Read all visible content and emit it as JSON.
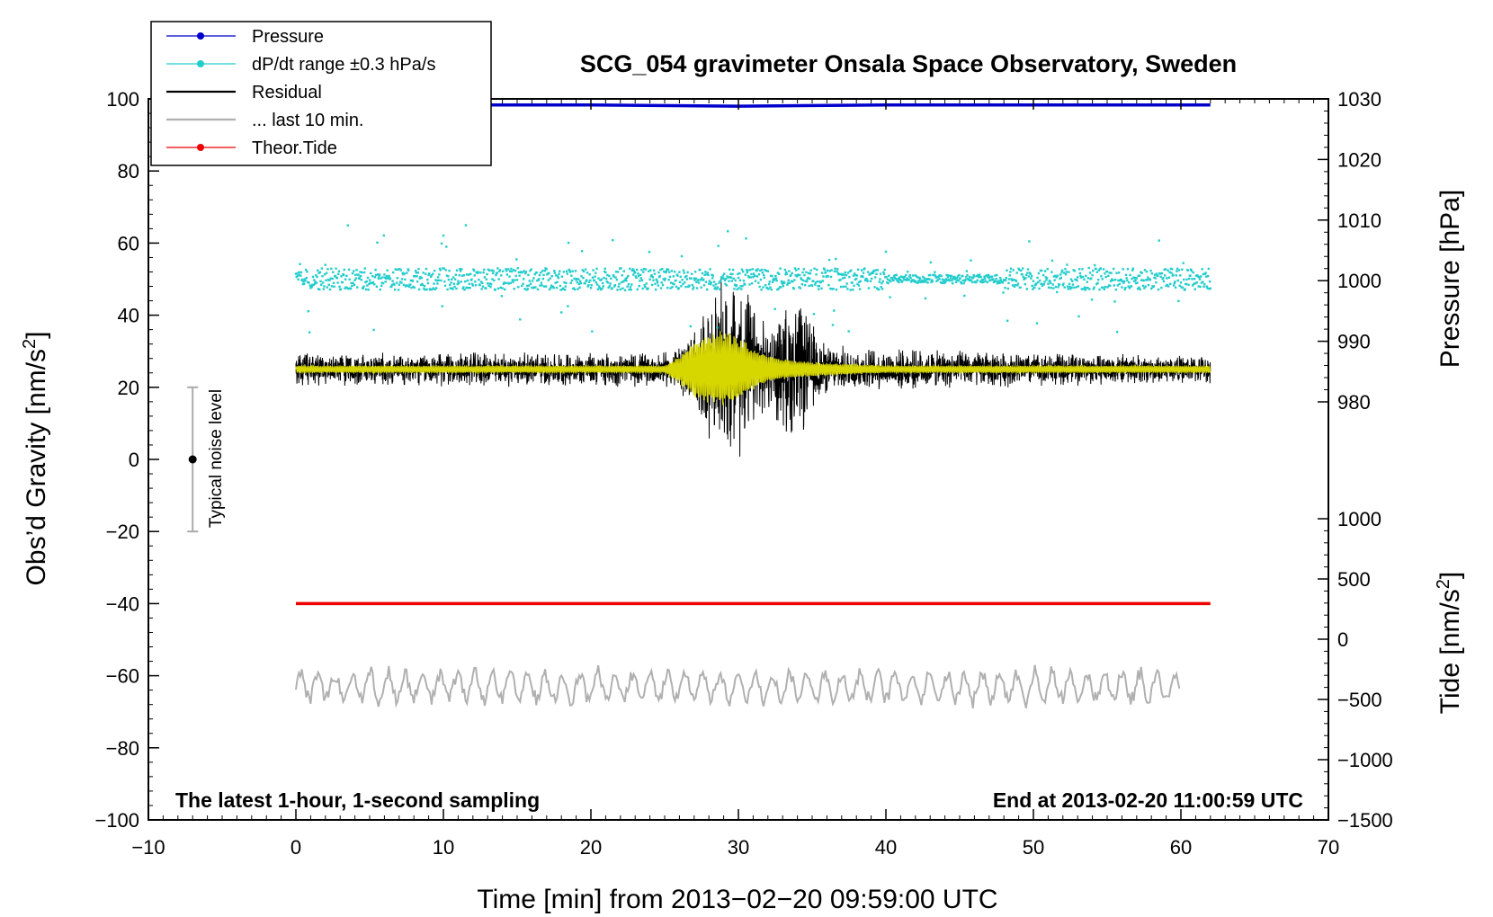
{
  "chart_data": {
    "type": "line",
    "title": "SCG_054 gravimeter Onsala Space Observatory, Sweden",
    "xlabel": "Time [min] from 2013−02−20 09:59:00 UTC",
    "ylabel_left_main": "Obs’d Gravity [nm/s",
    "ylabel_left_sup": "2",
    "ylabel_left_end": "]",
    "ylabel_right_pressure": "Pressure [hPa]",
    "ylabel_right_tide_main": "Tide [nm/s",
    "ylabel_right_tide_sup": "2",
    "ylabel_right_tide_end": "]",
    "xlim": [
      -10,
      70
    ],
    "ylim_left": [
      -100,
      100
    ],
    "ylim_pressure": [
      980,
      1030
    ],
    "ylim_tide": [
      -1500,
      1000
    ],
    "x_ticks": [
      "−10",
      "0",
      "10",
      "20",
      "30",
      "40",
      "50",
      "60",
      "70"
    ],
    "x_tick_values": [
      -10,
      0,
      10,
      20,
      30,
      40,
      50,
      60,
      70
    ],
    "left_ticks": [
      "100",
      "80",
      "60",
      "40",
      "20",
      "0",
      "−20",
      "−40",
      "−60",
      "−80",
      "−100"
    ],
    "left_tick_values": [
      100,
      80,
      60,
      40,
      20,
      0,
      -20,
      -40,
      -60,
      -80,
      -100
    ],
    "pressure_ticks": [
      "1030",
      "1020",
      "1010",
      "1000",
      "990",
      "980"
    ],
    "pressure_tick_values": [
      1030,
      1020,
      1010,
      1000,
      990,
      980
    ],
    "tide_ticks": [
      "1000",
      "500",
      "0",
      "−500",
      "−1000",
      "−1500"
    ],
    "tide_tick_values": [
      1000,
      500,
      0,
      -500,
      -1000,
      -1500
    ],
    "note_left": "The latest 1-hour, 1-second sampling",
    "note_right": "End at 2013-02-20 11:00:59 UTC",
    "noise_label": "Typical noise level",
    "noise_bar": {
      "x": -7,
      "center": 0,
      "low": -20,
      "high": 20
    },
    "legend": [
      {
        "label": "Pressure",
        "color": "#0000cc",
        "style": "line-dot"
      },
      {
        "label": "dP/dt range ±0.3 hPa/s",
        "color": "#22cccc",
        "style": "line-dot"
      },
      {
        "label": "Residual",
        "color": "#000000",
        "style": "line"
      },
      {
        "label": "... last 10 min.",
        "color": "#b0b0b0",
        "style": "line"
      },
      {
        "label": "Theor.Tide",
        "color": "#ee0000",
        "style": "line-dot"
      }
    ],
    "series": [
      {
        "name": "Pressure",
        "axis": "pressure",
        "color": "#0000cc",
        "x": [
          0,
          10,
          20,
          30,
          40,
          50,
          62
        ],
        "values": [
          1029.0,
          1029.0,
          1029.0,
          1028.8,
          1029.0,
          1029.0,
          1029.0
        ]
      },
      {
        "name": "Theor.Tide",
        "axis": "left",
        "color": "#ee0000",
        "x": [
          0,
          62
        ],
        "values": [
          -40,
          -40
        ]
      },
      {
        "name": "Residual",
        "axis": "left",
        "color": "#000000",
        "x_range": [
          0,
          62
        ],
        "baseline": 25,
        "envelope_x": [
          0,
          25,
          26.5,
          28,
          29,
          30,
          31,
          32,
          33,
          34,
          35,
          36,
          40,
          50,
          62
        ],
        "envelope_amp": [
          5,
          5,
          9,
          20,
          27,
          28,
          20,
          12,
          18,
          22,
          14,
          7,
          6,
          5,
          4
        ]
      },
      {
        "name": "Filtered (yellow)",
        "axis": "left",
        "color": "#d6d600",
        "x_range": [
          0,
          62
        ],
        "baseline": 25,
        "envelope_x": [
          0,
          25,
          26,
          27,
          28,
          29,
          30,
          31,
          32,
          33,
          35,
          40,
          62
        ],
        "envelope_amp": [
          1,
          1,
          4,
          8,
          10,
          11,
          9,
          6,
          4,
          3,
          2,
          1,
          1
        ]
      },
      {
        "name": "dP/dt range ±0.3 hPa/s",
        "axis": "left",
        "color": "#22cccc",
        "x_range": [
          0,
          62
        ],
        "baseline": 50,
        "scatter_spread": 3
      },
      {
        "name": "... last 10 min.",
        "axis": "left",
        "color": "#b0b0b0",
        "x_range": [
          0,
          60
        ],
        "baseline": -63,
        "amplitude": 5
      }
    ]
  }
}
